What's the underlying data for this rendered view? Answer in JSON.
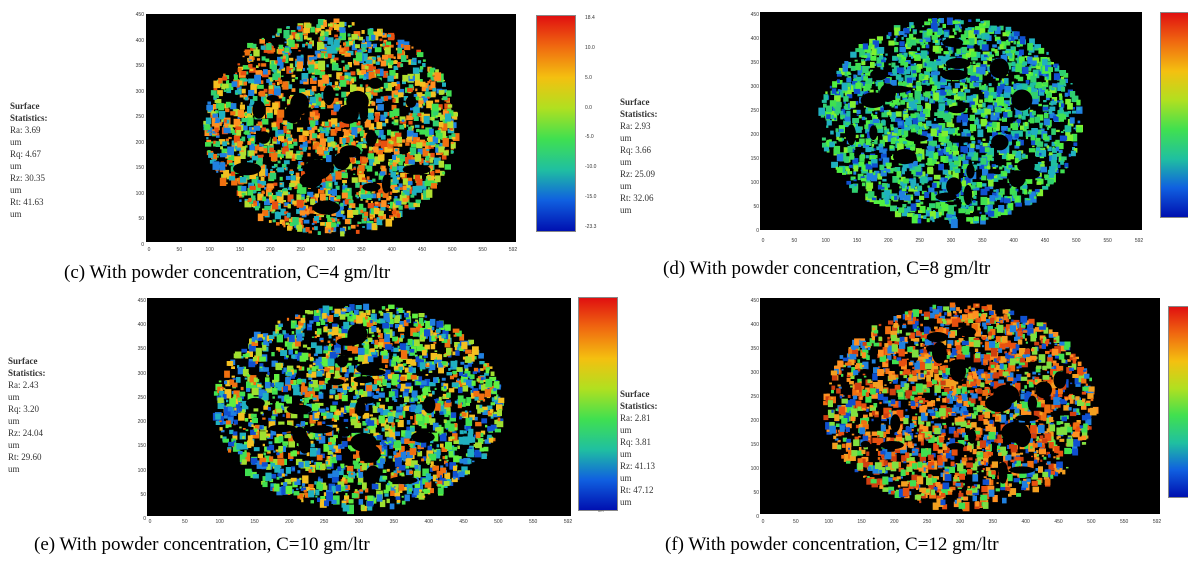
{
  "panels": [
    {
      "id": "c",
      "caption": "(c) With powder concentration, C=4 gm/ltr",
      "stats_title": "Surface Statistics:",
      "stats": [
        "Ra: 3.69 um",
        "Rq: 4.67 um",
        "Rz: 30.35 um",
        "Rt: 41.63 um"
      ],
      "y_ticks": [
        "450",
        "400",
        "350",
        "300",
        "250",
        "200",
        "150",
        "100",
        "50",
        "0"
      ],
      "x_ticks": [
        "0",
        "50",
        "100",
        "150",
        "200",
        "250",
        "300",
        "350",
        "400",
        "450",
        "500",
        "550",
        "592"
      ],
      "unit": "um",
      "colorbar_ticks": [
        "18.4",
        "10.0",
        "5.0",
        "0.0",
        "-5.0",
        "-10.0",
        "-15.0",
        "-23.3"
      ],
      "palette": "mixed-orange-green"
    },
    {
      "id": "d",
      "caption": "(d) With powder concentration, C=8 gm/ltr",
      "stats_title": "Surface Statistics:",
      "stats": [
        "Ra: 2.93 um",
        "Rq: 3.66 um",
        "Rz: 25.09 um",
        "Rt: 32.06 um"
      ],
      "y_ticks": [
        "450",
        "400",
        "350",
        "300",
        "250",
        "200",
        "150",
        "100",
        "50",
        "0"
      ],
      "x_ticks": [
        "0",
        "50",
        "100",
        "150",
        "200",
        "250",
        "300",
        "350",
        "400",
        "450",
        "500",
        "550",
        "592"
      ],
      "unit": "um",
      "colorbar_ticks": [],
      "palette": "green-blue"
    },
    {
      "id": "e",
      "caption": "(e) With powder concentration, C=10 gm/ltr",
      "stats_title": "Surface Statistics:",
      "stats": [
        "Ra: 2.43 um",
        "Rq: 3.20 um",
        "Rz: 24.04 um",
        "Rt: 29.60 um"
      ],
      "y_ticks": [
        "450",
        "400",
        "350",
        "300",
        "250",
        "200",
        "150",
        "100",
        "50",
        "0"
      ],
      "x_ticks": [
        "0",
        "50",
        "100",
        "150",
        "200",
        "250",
        "300",
        "350",
        "400",
        "450",
        "500",
        "550",
        "592"
      ],
      "unit": "um",
      "colorbar_ticks": [],
      "palette": "green-blue-orange"
    },
    {
      "id": "f",
      "caption": "(f) With powder concentration, C=12 gm/ltr",
      "stats_title": "Surface Statistics:",
      "stats": [
        "Ra: 2.81 um",
        "Rq: 3.81 um",
        "Rz: 41.13 um",
        "Rt: 47.12 um"
      ],
      "y_ticks": [
        "450",
        "400",
        "350",
        "300",
        "250",
        "200",
        "150",
        "100",
        "50",
        "0"
      ],
      "x_ticks": [
        "0",
        "50",
        "100",
        "150",
        "200",
        "250",
        "300",
        "350",
        "400",
        "450",
        "500",
        "550",
        "592"
      ],
      "unit": "um",
      "colorbar_ticks": [],
      "palette": "orange-red"
    }
  ]
}
